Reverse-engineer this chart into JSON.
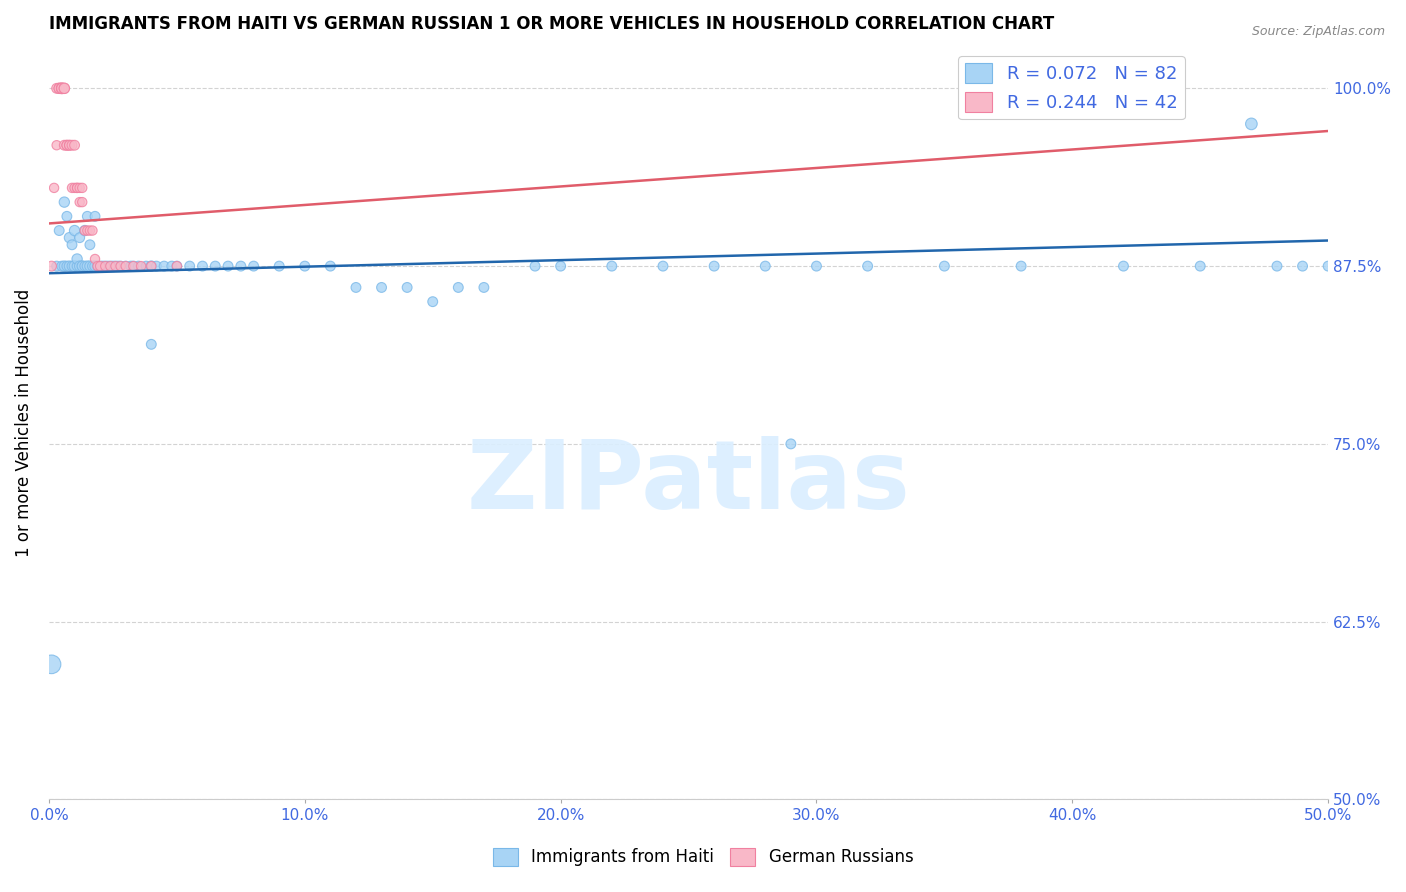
{
  "title": "IMMIGRANTS FROM HAITI VS GERMAN RUSSIAN 1 OR MORE VEHICLES IN HOUSEHOLD CORRELATION CHART",
  "source": "Source: ZipAtlas.com",
  "ylabel": "1 or more Vehicles in Household",
  "xlim": [
    0.0,
    0.5
  ],
  "ylim": [
    0.5,
    1.03
  ],
  "xtick_vals": [
    0.0,
    0.1,
    0.2,
    0.3,
    0.4,
    0.5
  ],
  "xtick_labels": [
    "0.0%",
    "10.0%",
    "20.0%",
    "30.0%",
    "40.0%",
    "50.0%"
  ],
  "ytick_vals": [
    0.5,
    0.625,
    0.75,
    0.875,
    1.0
  ],
  "ytick_labels": [
    "50.0%",
    "62.5%",
    "75.0%",
    "87.5%",
    "100.0%"
  ],
  "legend1_label": "R = 0.072   N = 82",
  "legend2_label": "R = 0.244   N = 42",
  "trendline_blue_color": "#2166ac",
  "trendline_pink_color": "#e05c6a",
  "scatter_blue_facecolor": "#a8d4f5",
  "scatter_blue_edgecolor": "#7ab8e8",
  "scatter_pink_facecolor": "#f9b8c8",
  "scatter_pink_edgecolor": "#f080a0",
  "legend_blue_facecolor": "#a8d4f5",
  "legend_blue_edgecolor": "#7ab8e8",
  "legend_pink_facecolor": "#f9b8c8",
  "legend_pink_edgecolor": "#f080a0",
  "axis_label_color": "#4169e1",
  "grid_color": "#d3d3d3",
  "watermark_text": "ZIPatlas",
  "watermark_color": "#daeeff",
  "title_fontsize": 12,
  "source_fontsize": 9,
  "tick_fontsize": 11,
  "ylabel_fontsize": 12,
  "haiti_x": [
    0.001,
    0.003,
    0.004,
    0.005,
    0.006,
    0.006,
    0.007,
    0.007,
    0.008,
    0.008,
    0.009,
    0.009,
    0.01,
    0.01,
    0.011,
    0.011,
    0.012,
    0.012,
    0.013,
    0.013,
    0.014,
    0.014,
    0.015,
    0.015,
    0.016,
    0.016,
    0.017,
    0.018,
    0.018,
    0.019,
    0.02,
    0.021,
    0.022,
    0.023,
    0.024,
    0.025,
    0.026,
    0.027,
    0.028,
    0.03,
    0.032,
    0.033,
    0.035,
    0.038,
    0.04,
    0.042,
    0.045,
    0.048,
    0.05,
    0.055,
    0.06,
    0.065,
    0.07,
    0.075,
    0.08,
    0.09,
    0.1,
    0.11,
    0.12,
    0.13,
    0.14,
    0.15,
    0.16,
    0.17,
    0.19,
    0.2,
    0.22,
    0.24,
    0.26,
    0.28,
    0.3,
    0.32,
    0.35,
    0.38,
    0.42,
    0.45,
    0.47,
    0.48,
    0.49,
    0.5,
    0.04,
    0.29
  ],
  "haiti_y": [
    0.595,
    0.875,
    0.9,
    0.875,
    0.875,
    0.92,
    0.875,
    0.91,
    0.875,
    0.895,
    0.875,
    0.89,
    0.875,
    0.9,
    0.875,
    0.88,
    0.875,
    0.895,
    0.875,
    0.875,
    0.875,
    0.9,
    0.875,
    0.91,
    0.875,
    0.89,
    0.875,
    0.875,
    0.91,
    0.875,
    0.875,
    0.875,
    0.875,
    0.875,
    0.875,
    0.875,
    0.875,
    0.875,
    0.875,
    0.875,
    0.875,
    0.875,
    0.875,
    0.875,
    0.875,
    0.875,
    0.875,
    0.875,
    0.875,
    0.875,
    0.875,
    0.875,
    0.875,
    0.875,
    0.875,
    0.875,
    0.875,
    0.875,
    0.86,
    0.86,
    0.86,
    0.85,
    0.86,
    0.86,
    0.875,
    0.875,
    0.875,
    0.875,
    0.875,
    0.875,
    0.875,
    0.875,
    0.875,
    0.875,
    0.875,
    0.875,
    0.975,
    0.875,
    0.875,
    0.875,
    0.82,
    0.75
  ],
  "haiti_sizes": [
    180,
    50,
    50,
    50,
    55,
    55,
    50,
    50,
    55,
    55,
    50,
    50,
    60,
    55,
    50,
    55,
    55,
    50,
    50,
    55,
    50,
    55,
    55,
    50,
    55,
    50,
    50,
    55,
    50,
    50,
    50,
    50,
    50,
    50,
    50,
    50,
    50,
    50,
    50,
    50,
    50,
    50,
    50,
    50,
    55,
    50,
    50,
    50,
    50,
    50,
    50,
    50,
    50,
    50,
    50,
    50,
    50,
    50,
    50,
    50,
    50,
    50,
    50,
    50,
    50,
    50,
    50,
    50,
    50,
    50,
    50,
    50,
    50,
    50,
    50,
    50,
    70,
    50,
    50,
    50,
    50,
    50
  ],
  "german_x": [
    0.001,
    0.002,
    0.003,
    0.003,
    0.004,
    0.004,
    0.005,
    0.005,
    0.005,
    0.006,
    0.006,
    0.006,
    0.007,
    0.007,
    0.008,
    0.008,
    0.009,
    0.009,
    0.01,
    0.01,
    0.011,
    0.011,
    0.012,
    0.012,
    0.013,
    0.013,
    0.014,
    0.015,
    0.016,
    0.017,
    0.018,
    0.019,
    0.02,
    0.022,
    0.024,
    0.026,
    0.028,
    0.03,
    0.033,
    0.036,
    0.04,
    0.05
  ],
  "german_y": [
    0.875,
    0.93,
    0.96,
    1.0,
    1.0,
    1.0,
    1.0,
    1.0,
    1.0,
    0.96,
    1.0,
    1.0,
    0.96,
    0.96,
    0.96,
    0.96,
    0.96,
    0.93,
    0.93,
    0.96,
    0.93,
    0.93,
    0.92,
    0.93,
    0.93,
    0.92,
    0.9,
    0.9,
    0.9,
    0.9,
    0.88,
    0.875,
    0.875,
    0.875,
    0.875,
    0.875,
    0.875,
    0.875,
    0.875,
    0.875,
    0.875,
    0.875
  ],
  "german_sizes": [
    50,
    45,
    45,
    50,
    55,
    55,
    60,
    55,
    55,
    50,
    55,
    55,
    50,
    50,
    50,
    50,
    50,
    45,
    45,
    50,
    45,
    45,
    45,
    45,
    45,
    45,
    45,
    45,
    45,
    45,
    45,
    45,
    45,
    45,
    45,
    45,
    45,
    45,
    45,
    45,
    45,
    45
  ],
  "haiti_trend_x": [
    0.0,
    0.5
  ],
  "haiti_trend_y": [
    0.87,
    0.893
  ],
  "german_trend_x": [
    0.0,
    0.5
  ],
  "german_trend_y": [
    0.905,
    0.97
  ]
}
